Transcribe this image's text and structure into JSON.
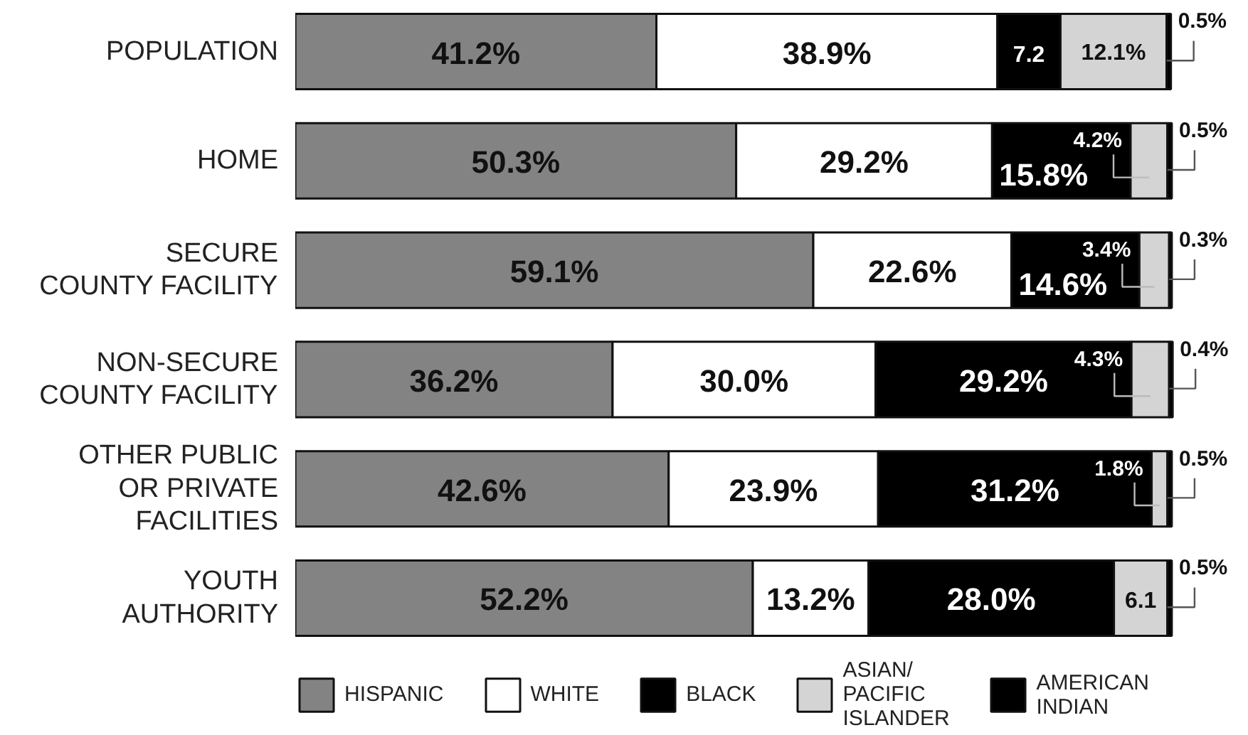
{
  "chart_data": {
    "type": "bar",
    "orientation": "horizontal",
    "stacked": true,
    "categories": [
      "POPULATION",
      "HOME",
      "SECURE\nCOUNTY FACILITY",
      "NON-SECURE\nCOUNTY FACILITY",
      "OTHER PUBLIC\nOR PRIVATE\nFACILITIES",
      "YOUTH\nAUTHORITY"
    ],
    "series": [
      {
        "name": "HISPANIC",
        "color": "#838383",
        "values": [
          41.2,
          50.3,
          59.1,
          36.2,
          42.6,
          52.2
        ],
        "value_labels": [
          "41.2%",
          "50.3%",
          "59.1%",
          "36.2%",
          "42.6%",
          "52.2%"
        ]
      },
      {
        "name": "WHITE",
        "color": "#ffffff",
        "values": [
          38.9,
          29.2,
          22.6,
          30.0,
          23.9,
          13.2
        ],
        "value_labels": [
          "38.9%",
          "29.2%",
          "22.6%",
          "30.0%",
          "23.9%",
          "13.2%"
        ]
      },
      {
        "name": "BLACK",
        "color": "#000000",
        "values": [
          7.2,
          15.8,
          14.6,
          29.2,
          31.2,
          28.0
        ],
        "value_labels": [
          "7.2",
          "15.8%",
          "14.6%",
          "29.2%",
          "31.2%",
          "28.0%"
        ]
      },
      {
        "name": "ASIAN/\nPACIFIC\nISLANDER",
        "color": "#d4d4d4",
        "values": [
          12.1,
          4.2,
          3.4,
          4.3,
          1.8,
          6.1
        ],
        "value_labels": [
          "12.1%",
          "4.2%",
          "3.4%",
          "4.3%",
          "1.8%",
          "6.1"
        ]
      },
      {
        "name": "AMERICAN\nINDIAN",
        "color": "#000000",
        "values": [
          0.5,
          0.5,
          0.3,
          0.4,
          0.5,
          0.5
        ],
        "value_labels": [
          "0.5%",
          "0.5%",
          "0.3%",
          "0.4%",
          "0.5%",
          "0.5%"
        ]
      }
    ],
    "legend": "bottom",
    "tick_labels": "y"
  }
}
